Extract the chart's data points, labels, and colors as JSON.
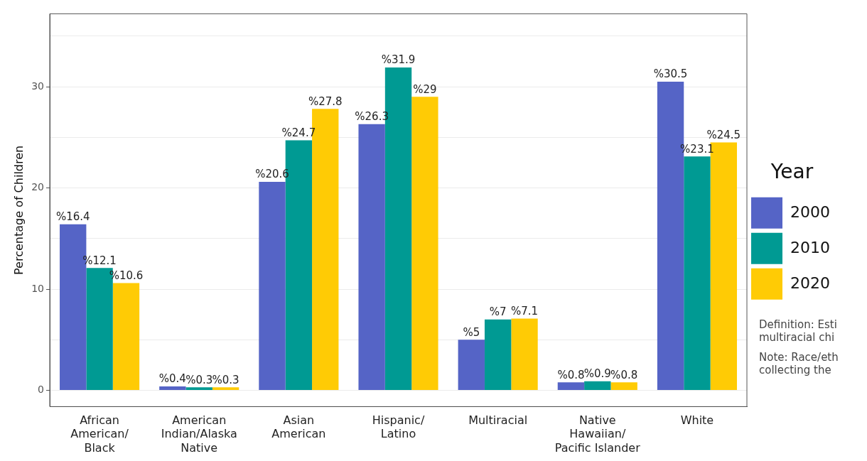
{
  "chart_data": {
    "type": "bar",
    "ylabel": "Percentage of Children",
    "legend_title": "Year",
    "legend": "right",
    "categories": [
      "African\nAmerican/\nBlack",
      "American\nIndian/Alaska\nNative",
      "Asian\nAmerican",
      "Hispanic/\nLatino",
      "Multiracial",
      "Native\nHawaiian/\nPacific Islander",
      "White"
    ],
    "series": [
      {
        "name": "2000",
        "color": "#5564c6",
        "values": [
          16.4,
          0.4,
          20.6,
          26.3,
          5,
          0.8,
          30.5
        ],
        "value_labels": [
          "%16.4",
          "%0.4",
          "%20.6",
          "%26.3",
          "%5",
          "%0.8",
          "%30.5"
        ]
      },
      {
        "name": "2010",
        "color": "#009a93",
        "values": [
          12.1,
          0.3,
          24.7,
          31.9,
          7,
          0.9,
          23.1
        ],
        "value_labels": [
          "%12.1",
          "%0.3",
          "%24.7",
          "%31.9",
          "%7",
          "%0.9",
          "%23.1"
        ]
      },
      {
        "name": "2020",
        "color": "#ffcb05",
        "values": [
          10.6,
          0.3,
          27.8,
          29,
          7.1,
          0.8,
          24.5
        ],
        "value_labels": [
          "%10.6",
          "%0.3",
          "%27.8",
          "%29",
          "%7.1",
          "%0.8",
          "%24.5"
        ]
      }
    ],
    "ylim": [
      -1.6,
      37.2
    ],
    "yticks": [
      0,
      {
        "value": 5,
        "label": null
      },
      10,
      {
        "value": 15,
        "label": null
      },
      20,
      {
        "value": 25,
        "label": null
      },
      30,
      {
        "value": 35,
        "label": null
      }
    ],
    "grid": "y",
    "annotations": [
      "Definition: Esti\nmultiracial chi",
      "Note: Race/eth\ncollecting the"
    ]
  }
}
